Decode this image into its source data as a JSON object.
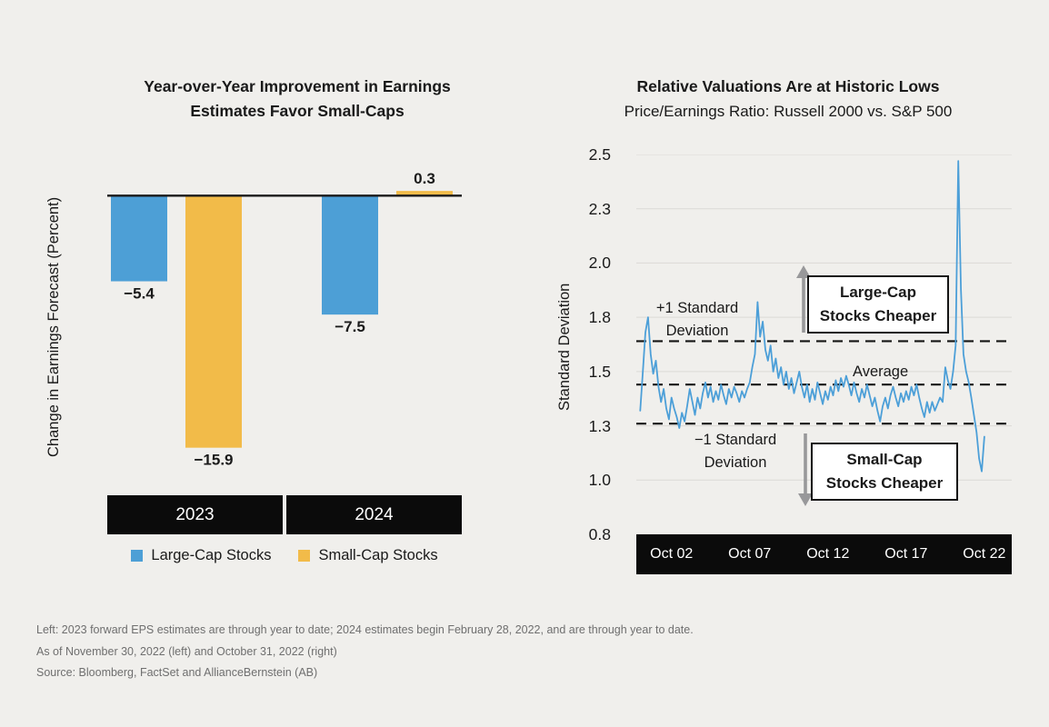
{
  "colors": {
    "background": "#f0efec",
    "large_cap_blue": "#4d9fd6",
    "small_cap_yellow": "#f2bb49",
    "band_black": "#0b0b0b",
    "text": "#1a1a1a",
    "muted_text": "#6f6f6f",
    "gridline": "#dbdad6",
    "arrow_gray": "#98989a"
  },
  "left_chart": {
    "title_line1": "Year-over-Year Improvement in Earnings",
    "title_line2": "Estimates Favor Small-Caps",
    "ylabel": "Change in Earnings Forecast (Percent)",
    "categories": [
      "2023",
      "2024"
    ],
    "legend": [
      {
        "label": "Large-Cap Stocks",
        "color": "#4d9fd6"
      },
      {
        "label": "Small-Cap Stocks",
        "color": "#f2bb49"
      }
    ]
  },
  "right_chart": {
    "title": "Relative Valuations Are at Historic Lows",
    "subtitle": "Price/Earnings Ratio: Russell 2000 vs. S&P 500",
    "ylabel": "Standard Deviation",
    "annotations": {
      "plus1_line1": "+1 Standard",
      "plus1_line2": "Deviation",
      "average": "Average",
      "minus1_line1": "−1 Standard",
      "minus1_line2": "Deviation",
      "large_cap_line1": "Large-Cap",
      "large_cap_line2": "Stocks Cheaper",
      "small_cap_line1": "Small-Cap",
      "small_cap_line2": "Stocks Cheaper"
    }
  },
  "footnotes": [
    "Left: 2023 forward EPS estimates are through year to date; 2024 estimates begin February 28, 2022, and are through year to date.",
    "As of November 30, 2022 (left) and October 31, 2022 (right)",
    "Source: Bloomberg, FactSet and AllianceBernstein (AB)"
  ],
  "chart_data": [
    {
      "type": "bar",
      "title": "Year-over-Year Improvement in Earnings Estimates Favor Small-Caps",
      "ylabel": "Change in Earnings Forecast (Percent)",
      "categories": [
        "2023",
        "2024"
      ],
      "series": [
        {
          "name": "Large-Cap Stocks",
          "color": "#4d9fd6",
          "values": [
            -5.4,
            -7.5
          ]
        },
        {
          "name": "Small-Cap Stocks",
          "color": "#f2bb49",
          "values": [
            -15.9,
            0.3
          ]
        }
      ],
      "ylim": [
        -18.9,
        2.6
      ],
      "grid": false,
      "legend_position": "bottom"
    },
    {
      "type": "line",
      "title": "Relative Valuations Are at Historic Lows",
      "subtitle": "Price/Earnings Ratio: Russell 2000 vs. S&P 500",
      "ylabel": "Standard Deviation",
      "line_color": "#4c9fd8",
      "x_unit": "year",
      "x_start": 2000.75,
      "x_step": 0.1666667,
      "xlim": [
        2000.5,
        2024.5
      ],
      "ylim": [
        0.75,
        2.5
      ],
      "grid": true,
      "yticks": [
        {
          "label": "2.5",
          "value": 2.5
        },
        {
          "label": "2.3",
          "value": 2.25
        },
        {
          "label": "2.0",
          "value": 2.0
        },
        {
          "label": "1.8",
          "value": 1.75
        },
        {
          "label": "1.5",
          "value": 1.5
        },
        {
          "label": "1.3",
          "value": 1.25
        },
        {
          "label": "1.0",
          "value": 1.0
        },
        {
          "label": "0.8",
          "value": 0.75
        }
      ],
      "xticks": [
        {
          "label": "Oct 02",
          "year": 2002.75
        },
        {
          "label": "Oct 07",
          "year": 2007.75
        },
        {
          "label": "Oct 12",
          "year": 2012.75
        },
        {
          "label": "Oct 17",
          "year": 2017.75
        },
        {
          "label": "Oct 22",
          "year": 2022.75
        }
      ],
      "reference_lines": [
        {
          "name": "+1 Standard Deviation",
          "value": 1.64
        },
        {
          "name": "Average",
          "value": 1.44
        },
        {
          "name": "−1 Standard Deviation",
          "value": 1.26
        }
      ],
      "values": [
        1.32,
        1.5,
        1.68,
        1.75,
        1.58,
        1.49,
        1.55,
        1.43,
        1.36,
        1.42,
        1.33,
        1.28,
        1.38,
        1.33,
        1.29,
        1.24,
        1.31,
        1.27,
        1.34,
        1.42,
        1.36,
        1.3,
        1.38,
        1.33,
        1.4,
        1.45,
        1.38,
        1.43,
        1.36,
        1.41,
        1.37,
        1.44,
        1.39,
        1.35,
        1.42,
        1.38,
        1.43,
        1.4,
        1.36,
        1.41,
        1.38,
        1.42,
        1.45,
        1.52,
        1.58,
        1.82,
        1.66,
        1.73,
        1.6,
        1.55,
        1.62,
        1.5,
        1.56,
        1.47,
        1.52,
        1.44,
        1.5,
        1.42,
        1.47,
        1.4,
        1.45,
        1.5,
        1.43,
        1.38,
        1.44,
        1.36,
        1.42,
        1.37,
        1.45,
        1.4,
        1.35,
        1.41,
        1.37,
        1.43,
        1.39,
        1.46,
        1.41,
        1.47,
        1.43,
        1.48,
        1.44,
        1.39,
        1.45,
        1.4,
        1.36,
        1.42,
        1.38,
        1.44,
        1.39,
        1.34,
        1.38,
        1.32,
        1.27,
        1.34,
        1.38,
        1.33,
        1.39,
        1.43,
        1.38,
        1.34,
        1.4,
        1.36,
        1.41,
        1.37,
        1.43,
        1.39,
        1.44,
        1.38,
        1.33,
        1.29,
        1.36,
        1.31,
        1.36,
        1.32,
        1.35,
        1.38,
        1.36,
        1.52,
        1.46,
        1.42,
        1.5,
        1.62,
        2.47,
        1.88,
        1.58,
        1.5,
        1.45,
        1.38,
        1.3,
        1.22,
        1.1,
        1.04,
        1.2
      ]
    }
  ]
}
